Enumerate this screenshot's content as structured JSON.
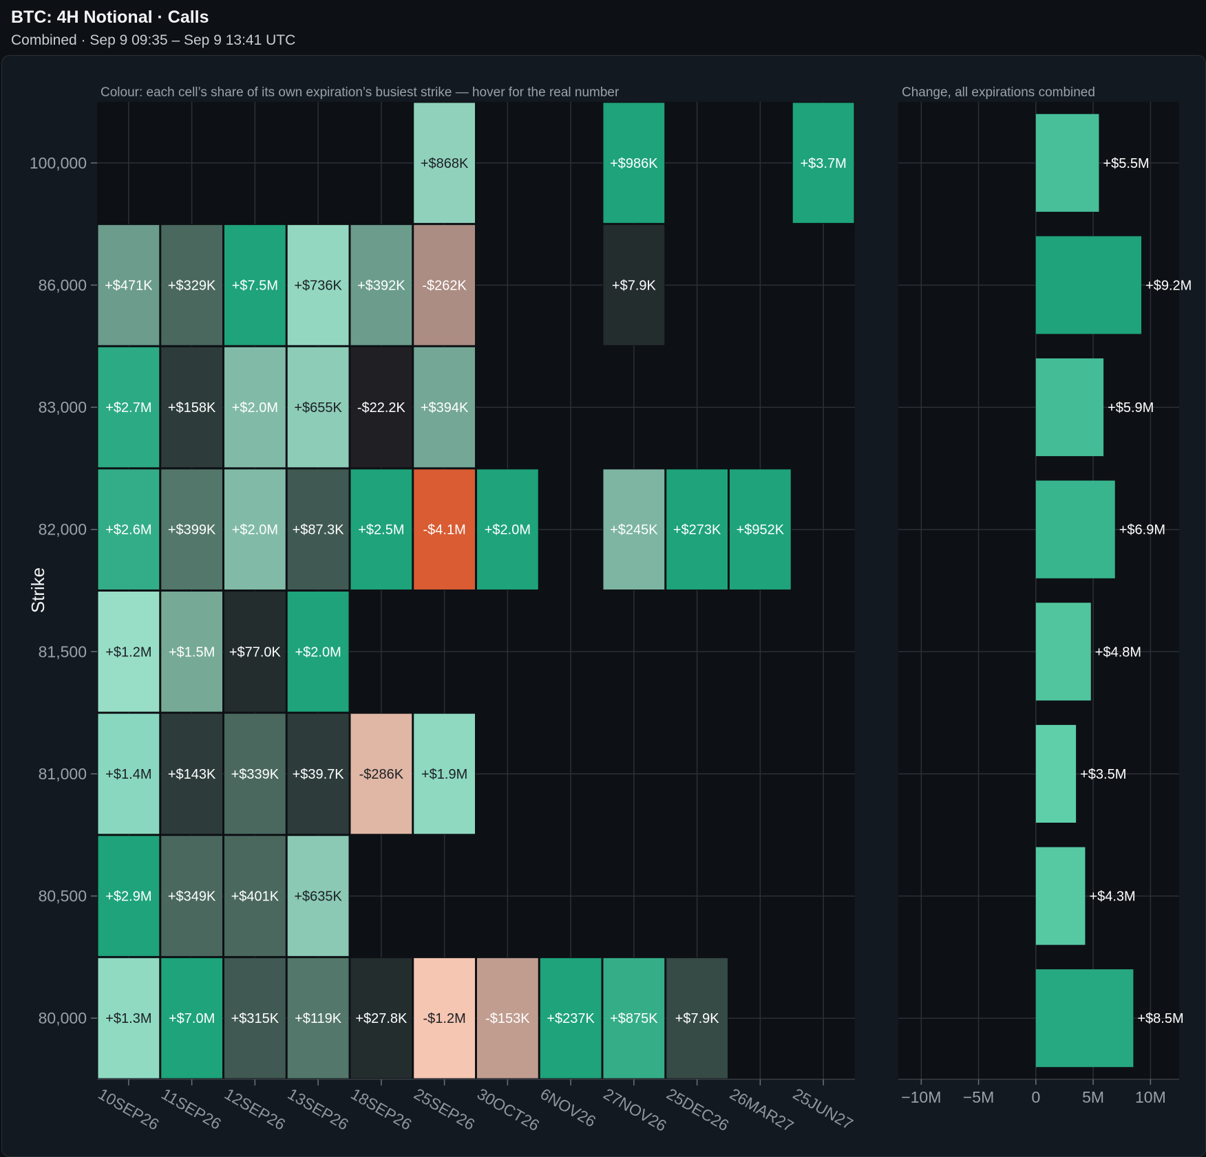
{
  "header": {
    "title": "BTC: 4H Notional · Calls",
    "subtitle": "Combined · Sep 9 09:35 – Sep 9 13:41 UTC"
  },
  "colors": {
    "positive_strong": "#1ea37a",
    "positive_light": "#9adfc8",
    "negative_strong": "#d95c33",
    "negative_light": "#f5c6b2",
    "bar": "#2fb58a",
    "background": "#0d1015"
  },
  "chart_data": [
    {
      "type": "heatmap",
      "note": "Colour: each cell’s share of its own expiration’s busiest strike — hover for the real number",
      "ylabel": "Strike",
      "xlabel": "",
      "x_categories": [
        "10SEP26",
        "11SEP26",
        "12SEP26",
        "13SEP26",
        "18SEP26",
        "25SEP26",
        "30OCT26",
        "6NOV26",
        "27NOV26",
        "25DEC26",
        "26MAR27",
        "25JUN27"
      ],
      "y_categories": [
        "100,000",
        "86,000",
        "83,000",
        "82,000",
        "81,500",
        "81,000",
        "80,500",
        "80,000"
      ],
      "cells": [
        {
          "strike": "100,000",
          "expiry": "25SEP26",
          "label": "+$868K",
          "value": 868000,
          "share": 0.35
        },
        {
          "strike": "100,000",
          "expiry": "27NOV26",
          "label": "+$986K",
          "value": 986000,
          "share": 1.0
        },
        {
          "strike": "100,000",
          "expiry": "25JUN27",
          "label": "+$3.7M",
          "value": 3700000,
          "share": 1.0
        },
        {
          "strike": "86,000",
          "expiry": "10SEP26",
          "label": "+$471K",
          "value": 471000,
          "share": 0.16
        },
        {
          "strike": "86,000",
          "expiry": "11SEP26",
          "label": "+$329K",
          "value": 329000,
          "share": 0.05
        },
        {
          "strike": "86,000",
          "expiry": "12SEP26",
          "label": "+$7.5M",
          "value": 7500000,
          "share": 1.0
        },
        {
          "strike": "86,000",
          "expiry": "13SEP26",
          "label": "+$736K",
          "value": 736000,
          "share": 0.37
        },
        {
          "strike": "86,000",
          "expiry": "18SEP26",
          "label": "+$392K",
          "value": 392000,
          "share": 0.16
        },
        {
          "strike": "86,000",
          "expiry": "25SEP26",
          "label": "-$262K",
          "value": -262000,
          "share": -0.06
        },
        {
          "strike": "86,000",
          "expiry": "27NOV26",
          "label": "+$7.9K",
          "value": 7900,
          "share": 0.01
        },
        {
          "strike": "83,000",
          "expiry": "10SEP26",
          "label": "+$2.7M",
          "value": 2700000,
          "share": 0.93
        },
        {
          "strike": "83,000",
          "expiry": "11SEP26",
          "label": "+$158K",
          "value": 158000,
          "share": 0.02
        },
        {
          "strike": "83,000",
          "expiry": "12SEP26",
          "label": "+$2.0M",
          "value": 2000000,
          "share": 0.27
        },
        {
          "strike": "83,000",
          "expiry": "13SEP26",
          "label": "+$655K",
          "value": 655000,
          "share": 0.33
        },
        {
          "strike": "83,000",
          "expiry": "18SEP26",
          "label": "-$22.2K",
          "value": -22200,
          "share": -0.01
        },
        {
          "strike": "83,000",
          "expiry": "25SEP26",
          "label": "+$394K",
          "value": 394000,
          "share": 0.2
        },
        {
          "strike": "82,000",
          "expiry": "10SEP26",
          "label": "+$2.6M",
          "value": 2600000,
          "share": 0.9
        },
        {
          "strike": "82,000",
          "expiry": "11SEP26",
          "label": "+$399K",
          "value": 399000,
          "share": 0.06
        },
        {
          "strike": "82,000",
          "expiry": "12SEP26",
          "label": "+$2.0M",
          "value": 2000000,
          "share": 0.27
        },
        {
          "strike": "82,000",
          "expiry": "13SEP26",
          "label": "+$87.3K",
          "value": 87300,
          "share": 0.04
        },
        {
          "strike": "82,000",
          "expiry": "18SEP26",
          "label": "+$2.5M",
          "value": 2500000,
          "share": 1.0
        },
        {
          "strike": "82,000",
          "expiry": "25SEP26",
          "label": "-$4.1M",
          "value": -4100000,
          "share": -1.0
        },
        {
          "strike": "82,000",
          "expiry": "30OCT26",
          "label": "+$2.0M",
          "value": 2000000,
          "share": 1.0
        },
        {
          "strike": "82,000",
          "expiry": "27NOV26",
          "label": "+$245K",
          "value": 245000,
          "share": 0.25
        },
        {
          "strike": "82,000",
          "expiry": "25DEC26",
          "label": "+$273K",
          "value": 273000,
          "share": 1.0
        },
        {
          "strike": "82,000",
          "expiry": "26MAR27",
          "label": "+$952K",
          "value": 952000,
          "share": 1.0
        },
        {
          "strike": "81,500",
          "expiry": "10SEP26",
          "label": "+$1.2M",
          "value": 1200000,
          "share": 0.41
        },
        {
          "strike": "81,500",
          "expiry": "11SEP26",
          "label": "+$1.5M",
          "value": 1500000,
          "share": 0.21
        },
        {
          "strike": "81,500",
          "expiry": "12SEP26",
          "label": "+$77.0K",
          "value": 77000,
          "share": 0.01
        },
        {
          "strike": "81,500",
          "expiry": "13SEP26",
          "label": "+$2.0M",
          "value": 2000000,
          "share": 1.0
        },
        {
          "strike": "81,000",
          "expiry": "10SEP26",
          "label": "+$1.4M",
          "value": 1400000,
          "share": 0.48
        },
        {
          "strike": "81,000",
          "expiry": "11SEP26",
          "label": "+$143K",
          "value": 143000,
          "share": 0.02
        },
        {
          "strike": "81,000",
          "expiry": "12SEP26",
          "label": "+$339K",
          "value": 339000,
          "share": 0.05
        },
        {
          "strike": "81,000",
          "expiry": "13SEP26",
          "label": "+$39.7K",
          "value": 39700,
          "share": 0.02
        },
        {
          "strike": "81,000",
          "expiry": "18SEP26",
          "label": "-$286K",
          "value": -286000,
          "share": -0.11
        },
        {
          "strike": "81,000",
          "expiry": "25SEP26",
          "label": "+$1.9M",
          "value": 1900000,
          "share": 0.46
        },
        {
          "strike": "80,500",
          "expiry": "10SEP26",
          "label": "+$2.9M",
          "value": 2900000,
          "share": 1.0
        },
        {
          "strike": "80,500",
          "expiry": "11SEP26",
          "label": "+$349K",
          "value": 349000,
          "share": 0.05
        },
        {
          "strike": "80,500",
          "expiry": "12SEP26",
          "label": "+$401K",
          "value": 401000,
          "share": 0.05
        },
        {
          "strike": "80,500",
          "expiry": "13SEP26",
          "label": "+$635K",
          "value": 635000,
          "share": 0.32
        },
        {
          "strike": "80,000",
          "expiry": "10SEP26",
          "label": "+$1.3M",
          "value": 1300000,
          "share": 0.45
        },
        {
          "strike": "80,000",
          "expiry": "11SEP26",
          "label": "+$7.0M",
          "value": 7000000,
          "share": 1.0
        },
        {
          "strike": "80,000",
          "expiry": "12SEP26",
          "label": "+$315K",
          "value": 315000,
          "share": 0.04
        },
        {
          "strike": "80,000",
          "expiry": "13SEP26",
          "label": "+$119K",
          "value": 119000,
          "share": 0.06
        },
        {
          "strike": "80,000",
          "expiry": "18SEP26",
          "label": "+$27.8K",
          "value": 27800,
          "share": 0.01
        },
        {
          "strike": "80,000",
          "expiry": "25SEP26",
          "label": "-$1.2M",
          "value": -1200000,
          "share": -0.29
        },
        {
          "strike": "80,000",
          "expiry": "30OCT26",
          "label": "-$153K",
          "value": -153000,
          "share": -0.08
        },
        {
          "strike": "80,000",
          "expiry": "6NOV26",
          "label": "+$237K",
          "value": 237000,
          "share": 1.0
        },
        {
          "strike": "80,000",
          "expiry": "27NOV26",
          "label": "+$875K",
          "value": 875000,
          "share": 0.89
        },
        {
          "strike": "80,000",
          "expiry": "25DEC26",
          "label": "+$7.9K",
          "value": 7900,
          "share": 0.03
        }
      ]
    },
    {
      "type": "bar",
      "orientation": "horizontal",
      "title": "Change, all expirations combined",
      "categories": [
        "100,000",
        "86,000",
        "83,000",
        "82,000",
        "81,500",
        "81,000",
        "80,500",
        "80,000"
      ],
      "values": [
        5.5,
        9.2,
        5.9,
        6.9,
        4.8,
        3.5,
        4.3,
        8.5
      ],
      "unit": "M",
      "labels": [
        "+$5.5M",
        "+$9.2M",
        "+$5.9M",
        "+$6.9M",
        "+$4.8M",
        "+$3.5M",
        "+$4.3M",
        "+$8.5M"
      ],
      "xlim": [
        -12,
        12.5
      ],
      "xticks": [
        -10,
        -5,
        0,
        5,
        10
      ],
      "xtick_labels": [
        "−10M",
        "−5M",
        "0",
        "5M",
        "10M"
      ],
      "grid": true
    }
  ]
}
